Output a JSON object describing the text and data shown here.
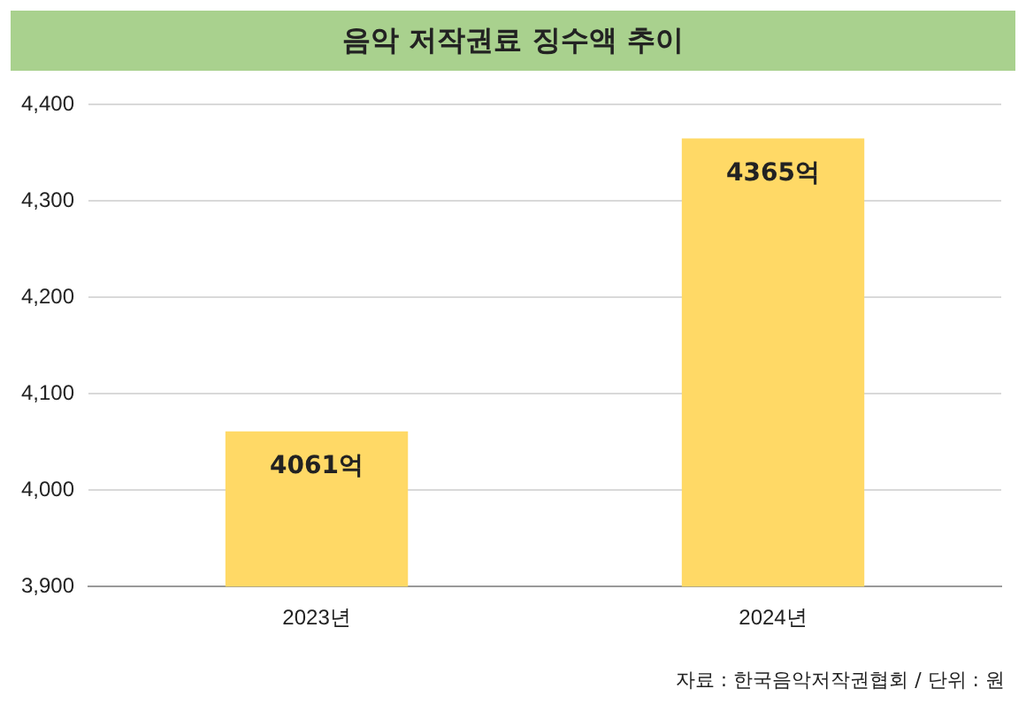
{
  "chart_data": {
    "type": "bar",
    "title": "음악 저작권료 징수액 추이",
    "categories": [
      "2023년",
      "2024년"
    ],
    "values": [
      4061,
      4365
    ],
    "value_labels": [
      "4061억",
      "4365억"
    ],
    "color": "#ffd966",
    "ylim": [
      3900,
      4400
    ],
    "yticks": [
      {
        "value": 3900,
        "label": "3,900"
      },
      {
        "value": 4000,
        "label": "4,000"
      },
      {
        "value": 4100,
        "label": "4,100"
      },
      {
        "value": 4200,
        "label": "4,200"
      },
      {
        "value": 4300,
        "label": "4,300"
      },
      {
        "value": 4400,
        "label": "4,400"
      }
    ],
    "grid": "y",
    "annotations": [
      "자료 : 한국음악저작권협회 / 단위 : 원"
    ]
  }
}
